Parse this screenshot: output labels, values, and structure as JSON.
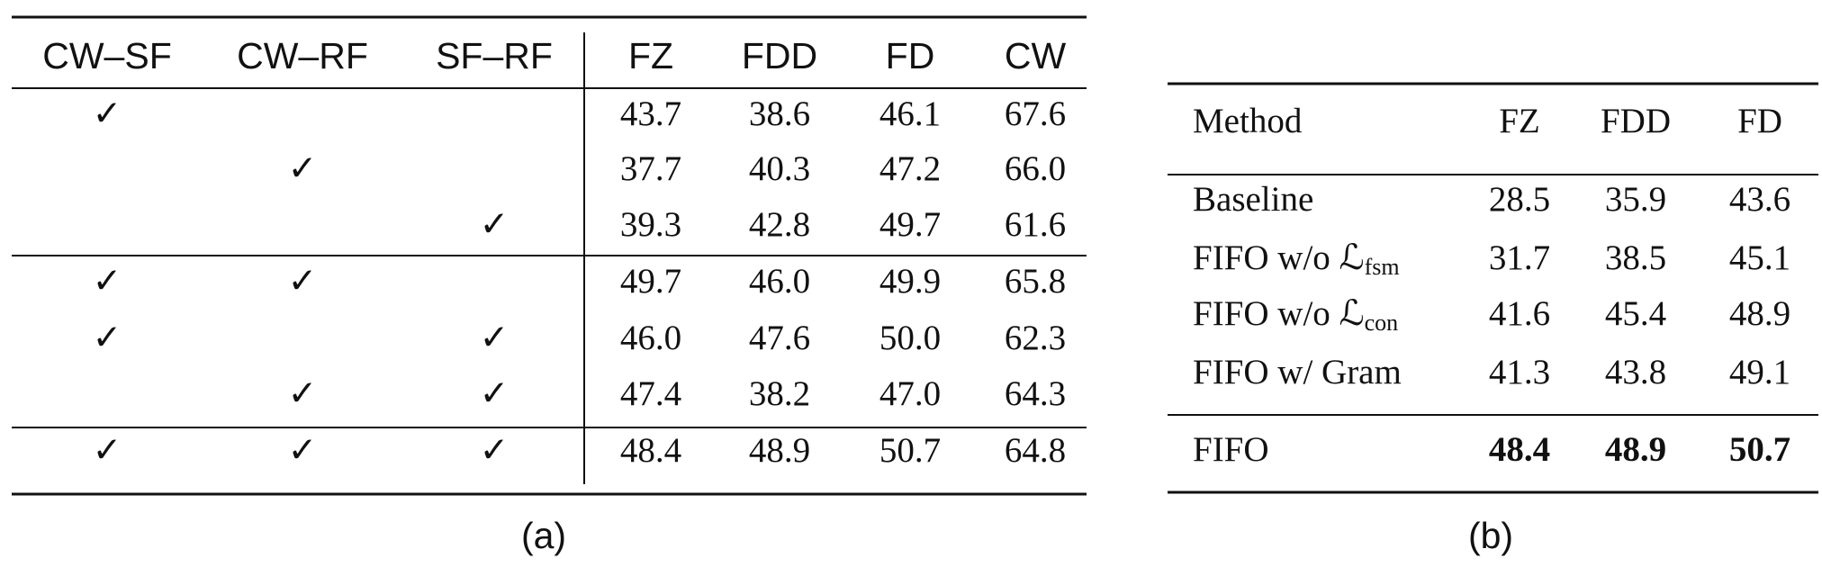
{
  "table_a": {
    "header": [
      "CW–SF",
      "CW–RF",
      "SF–RF",
      "FZ",
      "FDD",
      "FD",
      "CW"
    ],
    "rows": [
      {
        "checks": [
          "✓",
          null,
          null
        ],
        "values": [
          "43.7",
          "38.6",
          "46.1",
          "67.6"
        ]
      },
      {
        "checks": [
          null,
          "✓",
          null
        ],
        "values": [
          "37.7",
          "40.3",
          "47.2",
          "66.0"
        ]
      },
      {
        "checks": [
          null,
          null,
          "✓"
        ],
        "values": [
          "39.3",
          "42.8",
          "49.7",
          "61.6"
        ]
      },
      {
        "checks": [
          "✓",
          "✓",
          null
        ],
        "values": [
          "49.7",
          "46.0",
          "49.9",
          "65.8"
        ]
      },
      {
        "checks": [
          "✓",
          null,
          "✓"
        ],
        "values": [
          "46.0",
          "47.6",
          "50.0",
          "62.3"
        ]
      },
      {
        "checks": [
          null,
          "✓",
          "✓"
        ],
        "values": [
          "47.4",
          "38.2",
          "47.0",
          "64.3"
        ]
      },
      {
        "checks": [
          "✓",
          "✓",
          "✓"
        ],
        "values": [
          "48.4",
          "48.9",
          "50.7",
          "64.8"
        ]
      }
    ],
    "caption": "(a)"
  },
  "table_b": {
    "header": [
      "Method",
      "FZ",
      "FDD",
      "FD"
    ],
    "rows": [
      {
        "method": "Baseline",
        "values": [
          "28.5",
          "35.9",
          "43.6"
        ]
      },
      {
        "method": "FIFO w/o ℒ",
        "sub": "fsm",
        "values": [
          "31.7",
          "38.5",
          "45.1"
        ]
      },
      {
        "method": "FIFO w/o ℒ",
        "sub": "con",
        "values": [
          "41.6",
          "45.4",
          "48.9"
        ]
      },
      {
        "method": "FIFO w/ Gram",
        "values": [
          "41.3",
          "43.8",
          "49.1"
        ]
      },
      {
        "method": "FIFO",
        "values": [
          "48.4",
          "48.9",
          "50.7"
        ]
      }
    ],
    "caption": "(b)"
  }
}
